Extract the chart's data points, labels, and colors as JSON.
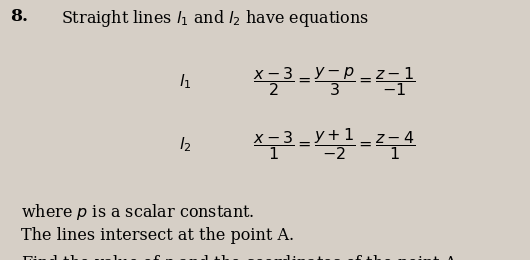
{
  "background_color": "#d6cfc6",
  "question_number": "8.",
  "title_text": "Straight lines $l_1$ and $l_2$ have equations",
  "l1_label": "$l_1$",
  "l2_label": "$l_2$",
  "l1_eq": "$\\dfrac{x-3}{2} = \\dfrac{y-p}{3} = \\dfrac{z-1}{-1}$",
  "l2_eq": "$\\dfrac{x-3}{1} = \\dfrac{y+1}{-2} = \\dfrac{z-4}{1}$",
  "line1": "where $p$ is a scalar constant.",
  "line2": "The lines intersect at the point A.",
  "line3": "Find the value of $p$ and the coordinates of the point A.",
  "title_fontsize": 11.5,
  "eq_fontsize": 11.5,
  "label_fontsize": 11.5,
  "body_fontsize": 11.5,
  "num_fontsize": 12.5
}
